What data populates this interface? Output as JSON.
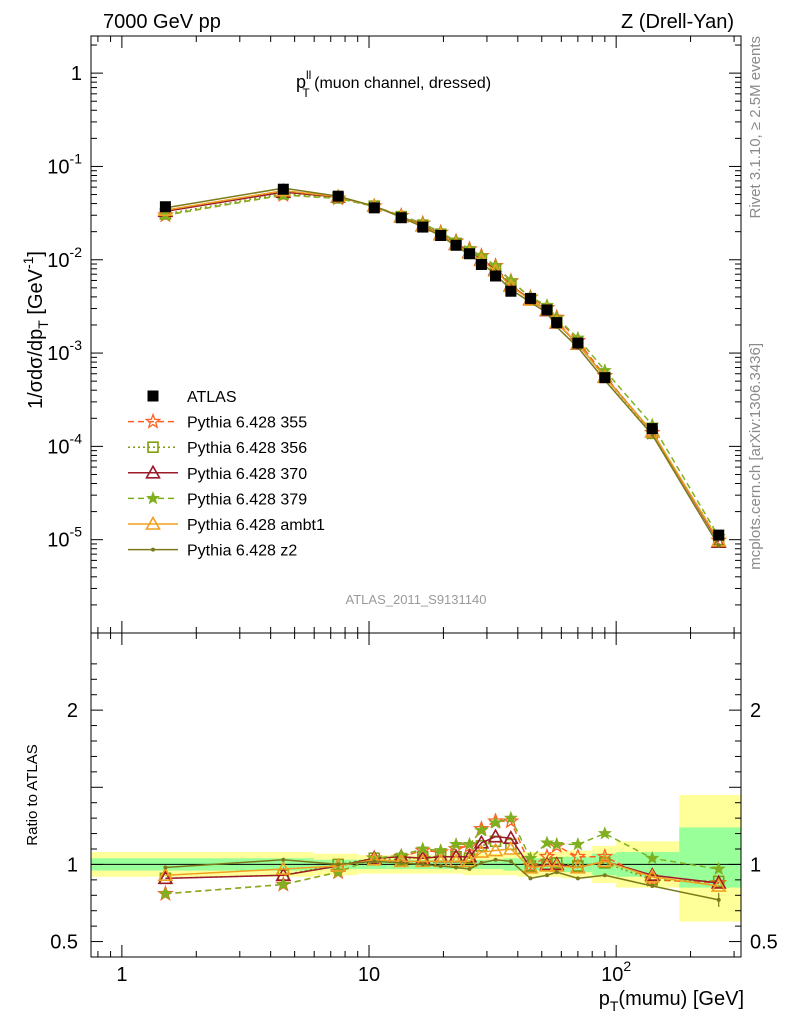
{
  "header": {
    "left": "7000 GeV pp",
    "right": "Z (Drell-Yan)"
  },
  "side_labels": {
    "rivet": "Rivet 3.1.10, ≥ 2.5M events",
    "mcplots": "mcplots.cern.ch [arXiv:1306.3436]"
  },
  "main_plot": {
    "ylabel": "1/σdσ/dp",
    "ylabel_sub": "T",
    "ylabel_unit": " [GeV",
    "ylabel_sup": "-1",
    "ylabel_close": "]",
    "plot_title_main": "p",
    "plot_title_sup": "ll",
    "plot_title_sub": "T",
    "plot_title_rest": " (muon channel, dressed)",
    "analysis_id": "ATLAS_2011_S9131140",
    "ytick_labels": [
      {
        "b": "10",
        "e": "-5",
        "v": -5
      },
      {
        "b": "10",
        "e": "-4",
        "v": -4
      },
      {
        "b": "10",
        "e": "-3",
        "v": -3
      },
      {
        "b": "10",
        "e": "-2",
        "v": -2
      },
      {
        "b": "10",
        "e": "-1",
        "v": -1
      },
      {
        "b": "1",
        "e": "",
        "v": 0
      }
    ]
  },
  "ratio_plot": {
    "ylabel": "Ratio to ATLAS",
    "ytick_labels": [
      "0.5",
      "1",
      "2"
    ],
    "xlabel_main": "p",
    "xlabel_sub": "T",
    "xlabel_rest": "(mumu) [GeV]",
    "xtick_labels": [
      {
        "b": "1",
        "e": "",
        "v": 1
      },
      {
        "b": "10",
        "e": "",
        "v": 10
      },
      {
        "b": "10",
        "e": "2",
        "v": 100
      }
    ]
  },
  "legend": [
    {
      "label": "ATLAS",
      "color": "#000000",
      "marker": "square",
      "dash": "none"
    },
    {
      "label": "Pythia 6.428 355",
      "color": "#ff6020",
      "marker": "star-open",
      "dash": "dash"
    },
    {
      "label": "Pythia 6.428 356",
      "color": "#7f9f10",
      "marker": "square-open",
      "dash": "dot"
    },
    {
      "label": "Pythia 6.428 370",
      "color": "#9b1b2b",
      "marker": "triangle-open",
      "dash": "solid"
    },
    {
      "label": "Pythia 6.428 379",
      "color": "#80b020",
      "marker": "star",
      "dash": "dash"
    },
    {
      "label": "Pythia 6.428 ambt1",
      "color": "#f0a020",
      "marker": "triangle-open",
      "dash": "solid"
    },
    {
      "label": "Pythia 6.428 z2",
      "color": "#7a7a1a",
      "marker": "dot",
      "dash": "solid"
    }
  ],
  "chart_data": [
    {
      "type": "line",
      "title": "",
      "xlabel": "pT(mumu) [GeV]",
      "ylabel": "1/σdσ/dpT [GeV^-1]",
      "xscale": "log",
      "yscale": "log",
      "xlim": [
        0.75,
        320
      ],
      "ylim": [
        1e-06,
        2.5
      ],
      "x": [
        1.5,
        4.5,
        7.5,
        10.5,
        13.5,
        16.5,
        19.5,
        22.5,
        25.5,
        28.5,
        32.5,
        37.5,
        45,
        52.5,
        57.5,
        70,
        90,
        140,
        260
      ],
      "series": [
        {
          "name": "ATLAS",
          "values": [
            0.037,
            0.057,
            0.048,
            0.036,
            0.0282,
            0.0224,
            0.0182,
            0.0143,
            0.0116,
            0.0089,
            0.0067,
            0.0046,
            0.00385,
            0.0029,
            0.00212,
            0.00128,
            0.000545,
            0.000155,
            1.12e-05
          ]
        },
        {
          "name": "Pythia 6.428 355",
          "values": [
            0.03,
            0.0495,
            0.0455,
            0.0375,
            0.0296,
            0.0245,
            0.0196,
            0.0158,
            0.013,
            0.011,
            0.0086,
            0.0059,
            0.00395,
            0.00305,
            0.0024,
            0.00135,
            0.00057,
            0.00014,
            9.8e-06
          ]
        },
        {
          "name": "Pythia 6.428 356",
          "values": [
            0.031,
            0.051,
            0.046,
            0.0375,
            0.029,
            0.0235,
            0.0188,
            0.015,
            0.0121,
            0.01,
            0.0077,
            0.0052,
            0.0038,
            0.0029,
            0.00215,
            0.00126,
            0.00055,
            0.000138,
            1e-05
          ]
        },
        {
          "name": "Pythia 6.428 370",
          "values": [
            0.033,
            0.053,
            0.047,
            0.0375,
            0.029,
            0.0232,
            0.0187,
            0.0147,
            0.012,
            0.01,
            0.0078,
            0.0053,
            0.00375,
            0.00285,
            0.0021,
            0.00125,
            0.000555,
            0.000143,
            9.4e-06
          ]
        },
        {
          "name": "Pythia 6.428 379",
          "values": [
            0.03,
            0.0495,
            0.0455,
            0.0372,
            0.0296,
            0.0245,
            0.0196,
            0.0158,
            0.013,
            0.011,
            0.0086,
            0.006,
            0.00395,
            0.00325,
            0.00238,
            0.00145,
            0.00065,
            0.00017,
            1.08e-05
          ]
        },
        {
          "name": "Pythia 6.428 ambt1",
          "values": [
            0.034,
            0.055,
            0.0475,
            0.0375,
            0.0288,
            0.023,
            0.0185,
            0.0145,
            0.0118,
            0.0098,
            0.0076,
            0.0052,
            0.0037,
            0.0029,
            0.00212,
            0.00126,
            0.00055,
            0.000143,
            9.7e-06
          ]
        },
        {
          "name": "Pythia 6.428 z2",
          "values": [
            0.036,
            0.0585,
            0.048,
            0.0375,
            0.0285,
            0.0225,
            0.018,
            0.014,
            0.0113,
            0.0093,
            0.0069,
            0.0048,
            0.0035,
            0.0027,
            0.0019,
            0.00115,
            0.00051,
            0.000133,
            8.6e-06
          ]
        }
      ]
    },
    {
      "type": "line",
      "title": "",
      "xlabel": "pT(mumu) [GeV]",
      "ylabel": "Ratio to ATLAS",
      "xscale": "log",
      "xlim": [
        0.75,
        320
      ],
      "ylim": [
        0.4,
        2.5
      ],
      "x": [
        1.5,
        4.5,
        7.5,
        10.5,
        13.5,
        16.5,
        19.5,
        22.5,
        25.5,
        28.5,
        32.5,
        37.5,
        45,
        52.5,
        57.5,
        70,
        90,
        140,
        260
      ],
      "band_edges": [
        0.75,
        3.0,
        6.0,
        9.0,
        12.0,
        15.0,
        18.0,
        21.0,
        24.0,
        27.0,
        30.0,
        35.0,
        40.0,
        50.0,
        55.0,
        60.0,
        80.0,
        100.0,
        180.0,
        320.0
      ],
      "band_inner": [
        [
          0.96,
          1.04
        ],
        [
          0.96,
          1.04
        ],
        [
          0.97,
          1.03
        ],
        [
          0.97,
          1.03
        ],
        [
          0.97,
          1.03
        ],
        [
          0.97,
          1.03
        ],
        [
          0.97,
          1.03
        ],
        [
          0.97,
          1.03
        ],
        [
          0.97,
          1.03
        ],
        [
          0.97,
          1.03
        ],
        [
          0.97,
          1.03
        ],
        [
          0.96,
          1.04
        ],
        [
          0.96,
          1.04
        ],
        [
          0.96,
          1.04
        ],
        [
          0.96,
          1.04
        ],
        [
          0.95,
          1.05
        ],
        [
          0.93,
          1.07
        ],
        [
          0.92,
          1.08
        ],
        [
          0.85,
          1.24
        ]
      ],
      "band_outer": [
        [
          0.92,
          1.08
        ],
        [
          0.92,
          1.08
        ],
        [
          0.93,
          1.07
        ],
        [
          0.94,
          1.06
        ],
        [
          0.94,
          1.06
        ],
        [
          0.94,
          1.06
        ],
        [
          0.94,
          1.06
        ],
        [
          0.94,
          1.06
        ],
        [
          0.93,
          1.07
        ],
        [
          0.93,
          1.07
        ],
        [
          0.93,
          1.07
        ],
        [
          0.93,
          1.07
        ],
        [
          0.92,
          1.08
        ],
        [
          0.92,
          1.08
        ],
        [
          0.92,
          1.08
        ],
        [
          0.91,
          1.09
        ],
        [
          0.88,
          1.12
        ],
        [
          0.85,
          1.15
        ],
        [
          0.63,
          1.45
        ]
      ],
      "series": [
        {
          "name": "Pythia 6.428 355",
          "values": [
            0.81,
            0.87,
            0.95,
            1.04,
            1.05,
            1.09,
            1.08,
            1.1,
            1.12,
            1.23,
            1.28,
            1.28,
            0.99,
            1.05,
            1.12,
            1.05,
            1.05,
            0.9,
            0.88
          ]
        },
        {
          "name": "Pythia 6.428 356",
          "values": [
            0.91,
            0.93,
            1.0,
            1.04,
            1.03,
            1.05,
            1.05,
            1.05,
            1.04,
            1.12,
            1.15,
            1.13,
            0.99,
            1.0,
            1.01,
            0.99,
            1.01,
            0.9,
            0.89
          ]
        },
        {
          "name": "Pythia 6.428 370",
          "values": [
            0.91,
            0.93,
            0.99,
            1.04,
            1.05,
            1.04,
            1.05,
            1.05,
            1.05,
            1.14,
            1.18,
            1.17,
            0.98,
            1.0,
            1.0,
            0.98,
            1.02,
            0.93,
            0.88
          ]
        },
        {
          "name": "Pythia 6.428 379",
          "values": [
            0.81,
            0.87,
            0.95,
            1.04,
            1.06,
            1.1,
            1.09,
            1.13,
            1.13,
            1.22,
            1.27,
            1.3,
            1.04,
            1.14,
            1.13,
            1.13,
            1.2,
            1.04,
            0.97
          ]
        },
        {
          "name": "Pythia 6.428 ambt1",
          "values": [
            0.93,
            0.97,
            0.99,
            1.03,
            1.02,
            1.02,
            1.02,
            1.02,
            1.02,
            1.08,
            1.09,
            1.1,
            0.98,
            0.99,
            0.99,
            0.98,
            1.02,
            0.92,
            0.86
          ]
        },
        {
          "name": "Pythia 6.428 z2",
          "values": [
            0.98,
            1.03,
            1.0,
            1.02,
            1.01,
            1.0,
            0.99,
            0.98,
            0.97,
            1.01,
            1.03,
            1.02,
            0.91,
            0.93,
            0.95,
            0.91,
            0.93,
            0.86,
            0.77
          ]
        }
      ]
    }
  ]
}
